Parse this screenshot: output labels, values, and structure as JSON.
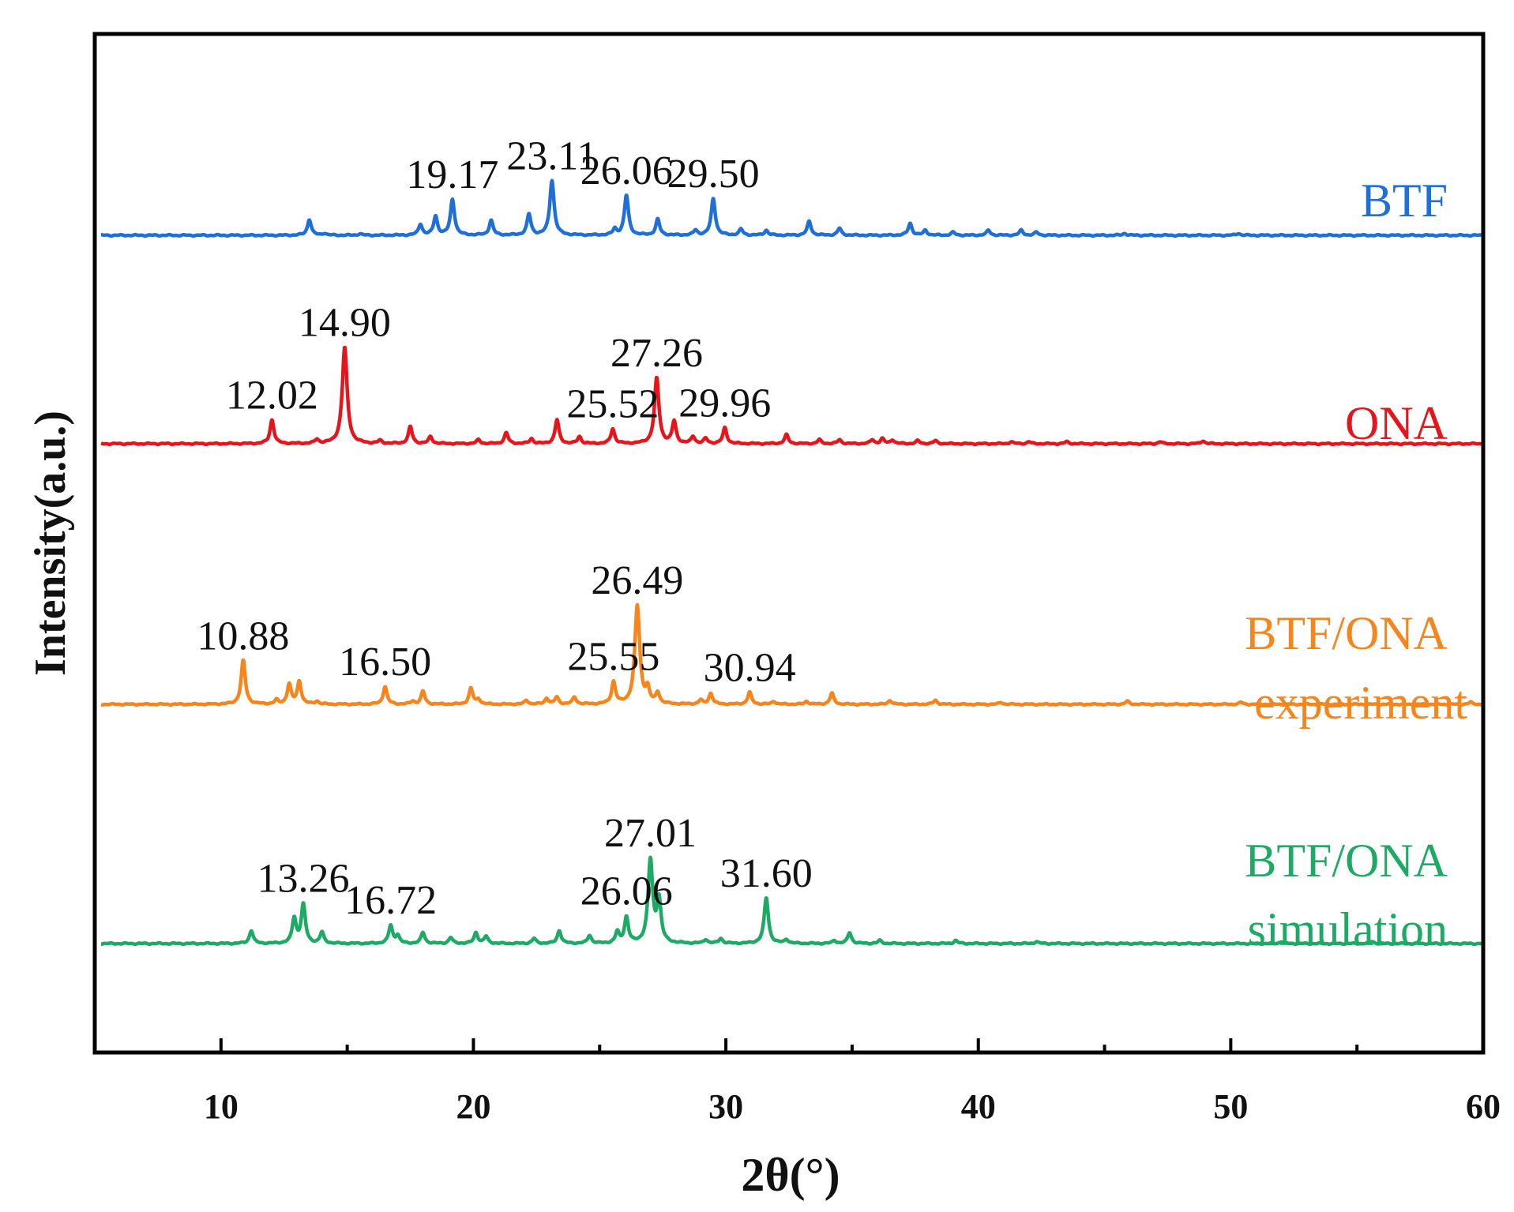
{
  "chart_data": {
    "type": "line",
    "title": "",
    "xlabel": "2θ(°)",
    "ylabel": "Intensity(a.u.)",
    "xlim": [
      5,
      60
    ],
    "ylim": [
      0,
      4.3
    ],
    "x_ticks": [
      10,
      20,
      30,
      40,
      50,
      60
    ],
    "grid": false,
    "series": [
      {
        "name": "BTF",
        "label_lines": [
          "BTF"
        ],
        "color": "#1f6fd8",
        "baseline": 3.45,
        "scale": 0.42,
        "peaks": [
          {
            "x": 13.5,
            "h": 0.16
          },
          {
            "x": 14.1,
            "h": 0.02
          },
          {
            "x": 15.5,
            "h": 0.015
          },
          {
            "x": 17.9,
            "h": 0.11
          },
          {
            "x": 18.5,
            "h": 0.19
          },
          {
            "x": 19.17,
            "h": 0.36
          },
          {
            "x": 20.7,
            "h": 0.15
          },
          {
            "x": 22.2,
            "h": 0.21
          },
          {
            "x": 23.11,
            "h": 0.55
          },
          {
            "x": 25.6,
            "h": 0.06
          },
          {
            "x": 26.06,
            "h": 0.4
          },
          {
            "x": 27.3,
            "h": 0.16
          },
          {
            "x": 28.8,
            "h": 0.05
          },
          {
            "x": 29.5,
            "h": 0.37
          },
          {
            "x": 30.6,
            "h": 0.06
          },
          {
            "x": 31.6,
            "h": 0.05
          },
          {
            "x": 33.3,
            "h": 0.14
          },
          {
            "x": 34.5,
            "h": 0.07
          },
          {
            "x": 37.3,
            "h": 0.12
          },
          {
            "x": 37.9,
            "h": 0.05
          },
          {
            "x": 39.0,
            "h": 0.03
          },
          {
            "x": 40.4,
            "h": 0.05
          },
          {
            "x": 41.7,
            "h": 0.05
          },
          {
            "x": 42.3,
            "h": 0.03
          },
          {
            "x": 45.8,
            "h": 0.02
          },
          {
            "x": 50.3,
            "h": 0.02
          }
        ],
        "annotations": [
          {
            "x": 19.17,
            "text": "19.17"
          },
          {
            "x": 23.11,
            "text": "23.11"
          },
          {
            "x": 26.06,
            "text": "26.06"
          },
          {
            "x": 29.5,
            "text": "29.50"
          }
        ]
      },
      {
        "name": "ONA",
        "label_lines": [
          "ONA"
        ],
        "color": "#e8141b",
        "baseline": 2.57,
        "scale": 0.42,
        "peaks": [
          {
            "x": 12.02,
            "h": 0.24
          },
          {
            "x": 13.8,
            "h": 0.04
          },
          {
            "x": 14.9,
            "h": 0.97
          },
          {
            "x": 16.3,
            "h": 0.03
          },
          {
            "x": 17.5,
            "h": 0.17
          },
          {
            "x": 18.3,
            "h": 0.07
          },
          {
            "x": 20.2,
            "h": 0.04
          },
          {
            "x": 21.3,
            "h": 0.11
          },
          {
            "x": 22.3,
            "h": 0.05
          },
          {
            "x": 23.31,
            "h": 0.24
          },
          {
            "x": 24.2,
            "h": 0.07
          },
          {
            "x": 25.52,
            "h": 0.15
          },
          {
            "x": 27.26,
            "h": 0.66
          },
          {
            "x": 27.95,
            "h": 0.22
          },
          {
            "x": 28.7,
            "h": 0.07
          },
          {
            "x": 29.2,
            "h": 0.05
          },
          {
            "x": 29.96,
            "h": 0.16
          },
          {
            "x": 32.4,
            "h": 0.09
          },
          {
            "x": 33.7,
            "h": 0.04
          },
          {
            "x": 34.5,
            "h": 0.04
          },
          {
            "x": 35.8,
            "h": 0.04
          },
          {
            "x": 36.2,
            "h": 0.05
          },
          {
            "x": 36.6,
            "h": 0.04
          },
          {
            "x": 37.6,
            "h": 0.03
          },
          {
            "x": 38.3,
            "h": 0.03
          },
          {
            "x": 41.3,
            "h": 0.02
          },
          {
            "x": 42.0,
            "h": 0.02
          },
          {
            "x": 43.5,
            "h": 0.02
          },
          {
            "x": 47.2,
            "h": 0.02
          },
          {
            "x": 48.9,
            "h": 0.03
          }
        ],
        "annotations": [
          {
            "x": 12.02,
            "text": "12.02"
          },
          {
            "x": 14.9,
            "text": "14.90"
          },
          {
            "x": 25.52,
            "text": "25.52"
          },
          {
            "x": 27.26,
            "text": "27.26"
          },
          {
            "x": 29.96,
            "text": "29.96"
          }
        ]
      },
      {
        "name": "BTF/ONA experiment",
        "label_lines": [
          "BTF/ONA",
          "experiment"
        ],
        "color": "#f7851c",
        "baseline": 1.47,
        "scale": 0.42,
        "peaks": [
          {
            "x": 10.88,
            "h": 0.44
          },
          {
            "x": 12.2,
            "h": 0.04
          },
          {
            "x": 12.7,
            "h": 0.2
          },
          {
            "x": 13.1,
            "h": 0.23
          },
          {
            "x": 13.8,
            "h": 0.03
          },
          {
            "x": 16.5,
            "h": 0.18
          },
          {
            "x": 17.6,
            "h": 0.03
          },
          {
            "x": 18.0,
            "h": 0.13
          },
          {
            "x": 19.9,
            "h": 0.16
          },
          {
            "x": 20.2,
            "h": 0.05
          },
          {
            "x": 22.1,
            "h": 0.04
          },
          {
            "x": 22.9,
            "h": 0.06
          },
          {
            "x": 23.3,
            "h": 0.07
          },
          {
            "x": 24.0,
            "h": 0.07
          },
          {
            "x": 25.55,
            "h": 0.22
          },
          {
            "x": 26.49,
            "h": 0.99
          },
          {
            "x": 26.9,
            "h": 0.14
          },
          {
            "x": 27.3,
            "h": 0.11
          },
          {
            "x": 29.0,
            "h": 0.04
          },
          {
            "x": 29.4,
            "h": 0.11
          },
          {
            "x": 30.94,
            "h": 0.12
          },
          {
            "x": 31.9,
            "h": 0.03
          },
          {
            "x": 33.2,
            "h": 0.03
          },
          {
            "x": 34.2,
            "h": 0.11
          },
          {
            "x": 36.5,
            "h": 0.04
          },
          {
            "x": 38.3,
            "h": 0.04
          },
          {
            "x": 40.9,
            "h": 0.02
          },
          {
            "x": 45.9,
            "h": 0.03
          },
          {
            "x": 50.4,
            "h": 0.02
          },
          {
            "x": 59.5,
            "h": 0.02
          }
        ],
        "annotations": [
          {
            "x": 10.88,
            "text": "10.88"
          },
          {
            "x": 16.5,
            "text": "16.50"
          },
          {
            "x": 25.55,
            "text": "25.55"
          },
          {
            "x": 26.49,
            "text": "26.49"
          },
          {
            "x": 30.94,
            "text": "30.94"
          }
        ]
      },
      {
        "name": "BTF/ONA simulation",
        "label_lines": [
          "BTF/ONA",
          "simulation"
        ],
        "color": "#1daa65",
        "baseline": 0.46,
        "scale": 0.42,
        "peaks": [
          {
            "x": 11.2,
            "h": 0.13
          },
          {
            "x": 12.9,
            "h": 0.25
          },
          {
            "x": 13.26,
            "h": 0.39
          },
          {
            "x": 14.0,
            "h": 0.11
          },
          {
            "x": 16.72,
            "h": 0.18
          },
          {
            "x": 17.0,
            "h": 0.08
          },
          {
            "x": 18.0,
            "h": 0.11
          },
          {
            "x": 19.1,
            "h": 0.06
          },
          {
            "x": 20.1,
            "h": 0.11
          },
          {
            "x": 20.5,
            "h": 0.07
          },
          {
            "x": 22.4,
            "h": 0.05
          },
          {
            "x": 23.4,
            "h": 0.13
          },
          {
            "x": 24.6,
            "h": 0.08
          },
          {
            "x": 25.7,
            "h": 0.11
          },
          {
            "x": 26.06,
            "h": 0.26
          },
          {
            "x": 27.01,
            "h": 0.83
          },
          {
            "x": 27.35,
            "h": 0.42
          },
          {
            "x": 29.2,
            "h": 0.04
          },
          {
            "x": 29.8,
            "h": 0.05
          },
          {
            "x": 31.6,
            "h": 0.46
          },
          {
            "x": 32.4,
            "h": 0.04
          },
          {
            "x": 34.3,
            "h": 0.03
          },
          {
            "x": 34.9,
            "h": 0.11
          },
          {
            "x": 36.1,
            "h": 0.03
          },
          {
            "x": 39.1,
            "h": 0.03
          },
          {
            "x": 42.3,
            "h": 0.02
          },
          {
            "x": 52.0,
            "h": 0.02
          },
          {
            "x": 55.6,
            "h": 0.02
          }
        ],
        "annotations": [
          {
            "x": 13.26,
            "text": "13.26"
          },
          {
            "x": 16.72,
            "text": "16.72"
          },
          {
            "x": 26.06,
            "text": "26.06"
          },
          {
            "x": 27.01,
            "text": "27.01"
          },
          {
            "x": 31.6,
            "text": "31.60"
          }
        ]
      }
    ]
  }
}
